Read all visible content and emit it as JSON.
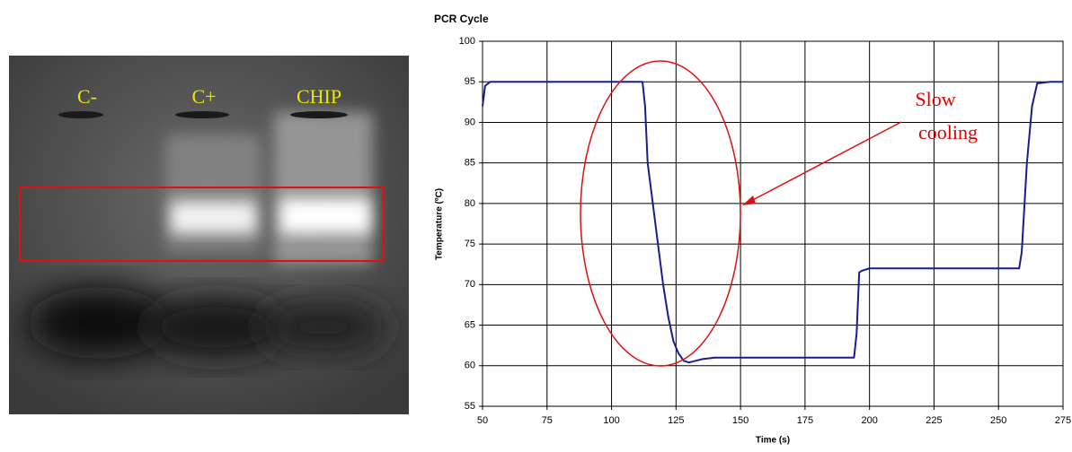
{
  "gel": {
    "lanes": [
      "C-",
      "C+",
      "CHIP"
    ]
  },
  "chart_data": {
    "type": "line",
    "title": "PCR Cycle",
    "x_label": "Time (s)",
    "y_label": "Temperature (ºC)",
    "x": [
      50,
      51,
      53,
      80,
      110,
      112,
      113,
      114,
      116,
      118,
      120,
      122,
      124,
      126,
      128,
      130,
      135,
      140,
      170,
      194,
      195,
      196,
      197,
      200,
      230,
      258,
      259,
      261,
      263,
      265,
      270,
      275
    ],
    "values": [
      92,
      94.5,
      95,
      95,
      95,
      95,
      92,
      85,
      80,
      75,
      70,
      66,
      63,
      61.5,
      60.6,
      60.4,
      60.8,
      61,
      61,
      61,
      64,
      71.5,
      71.7,
      72,
      72,
      72,
      74,
      85,
      92,
      94.8,
      95,
      95
    ],
    "color": "#1c1c8c",
    "xlim": [
      50,
      275
    ],
    "xticks": [
      50,
      75,
      100,
      125,
      150,
      175,
      200,
      225,
      250,
      275
    ],
    "ylim": [
      55,
      100
    ],
    "yticks": [
      55,
      60,
      65,
      70,
      75,
      80,
      85,
      90,
      95,
      100
    ],
    "grid": true,
    "annotation": [
      "Slow",
      "cooling"
    ]
  }
}
